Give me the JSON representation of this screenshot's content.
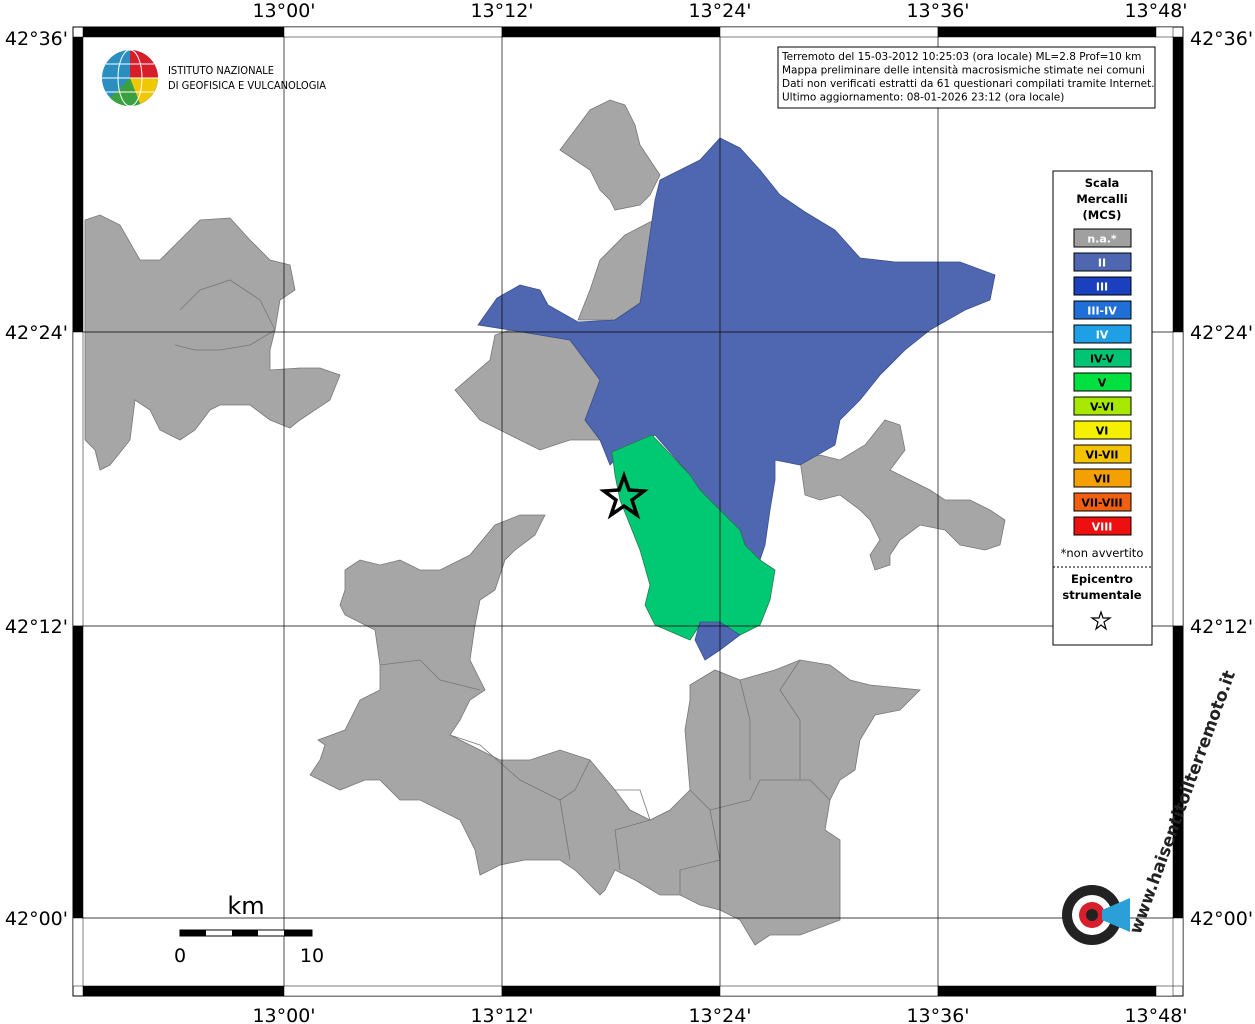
{
  "logo": {
    "line1": "ISTITUTO NAZIONALE",
    "line2": "DI GEOFISICA E VULCANOLOGIA"
  },
  "info": [
    "Terremoto del 15-03-2012 10:25:03 (ora locale) ML=2.8 Prof=10 km",
    "Mappa preliminare delle intensità macrosismiche stimate nei comuni",
    "Dati non verificati estratti da 61 questionari compilati tramite Internet.",
    "Ultimo aggiornamento: 08-01-2026 23:12 (ora locale)"
  ],
  "axes": {
    "longitude": [
      "13°00'",
      "13°12'",
      "13°24'",
      "13°36'",
      "13°48'"
    ],
    "latitude": [
      "42°36'",
      "42°24'",
      "42°12'",
      "42°00'"
    ]
  },
  "legend": {
    "title": [
      "Scala",
      "Mercalli",
      "(MCS)"
    ],
    "items": [
      {
        "label": "n.a.*",
        "color": "#a0a0a0",
        "text_color": "#ffffff"
      },
      {
        "label": "II",
        "color": "#4f67b0",
        "text_color": "#ffffff"
      },
      {
        "label": "III",
        "color": "#1a3fbf",
        "text_color": "#ffffff"
      },
      {
        "label": "III-IV",
        "color": "#1f6fd6",
        "text_color": "#ffffff"
      },
      {
        "label": "IV",
        "color": "#1fa0e6",
        "text_color": "#ffffff"
      },
      {
        "label": "IV-V",
        "color": "#00c473",
        "text_color": "#000000"
      },
      {
        "label": "V",
        "color": "#00e040",
        "text_color": "#000000"
      },
      {
        "label": "V-VI",
        "color": "#a6e800",
        "text_color": "#000000"
      },
      {
        "label": "VI",
        "color": "#f4f000",
        "text_color": "#000000"
      },
      {
        "label": "VI-VII",
        "color": "#f4c400",
        "text_color": "#000000"
      },
      {
        "label": "VII",
        "color": "#f4a000",
        "text_color": "#000000"
      },
      {
        "label": "VII-VIII",
        "color": "#f06010",
        "text_color": "#000000"
      },
      {
        "label": "VIII",
        "color": "#ee1010",
        "text_color": "#ffffff"
      }
    ],
    "note": "*non avvertito",
    "epicenter": [
      "Epicentro",
      "strumentale"
    ]
  },
  "scale": {
    "unit": "km",
    "labels": [
      "0",
      "10"
    ]
  },
  "watermark": "www.haisentitoilterremoto.it"
}
